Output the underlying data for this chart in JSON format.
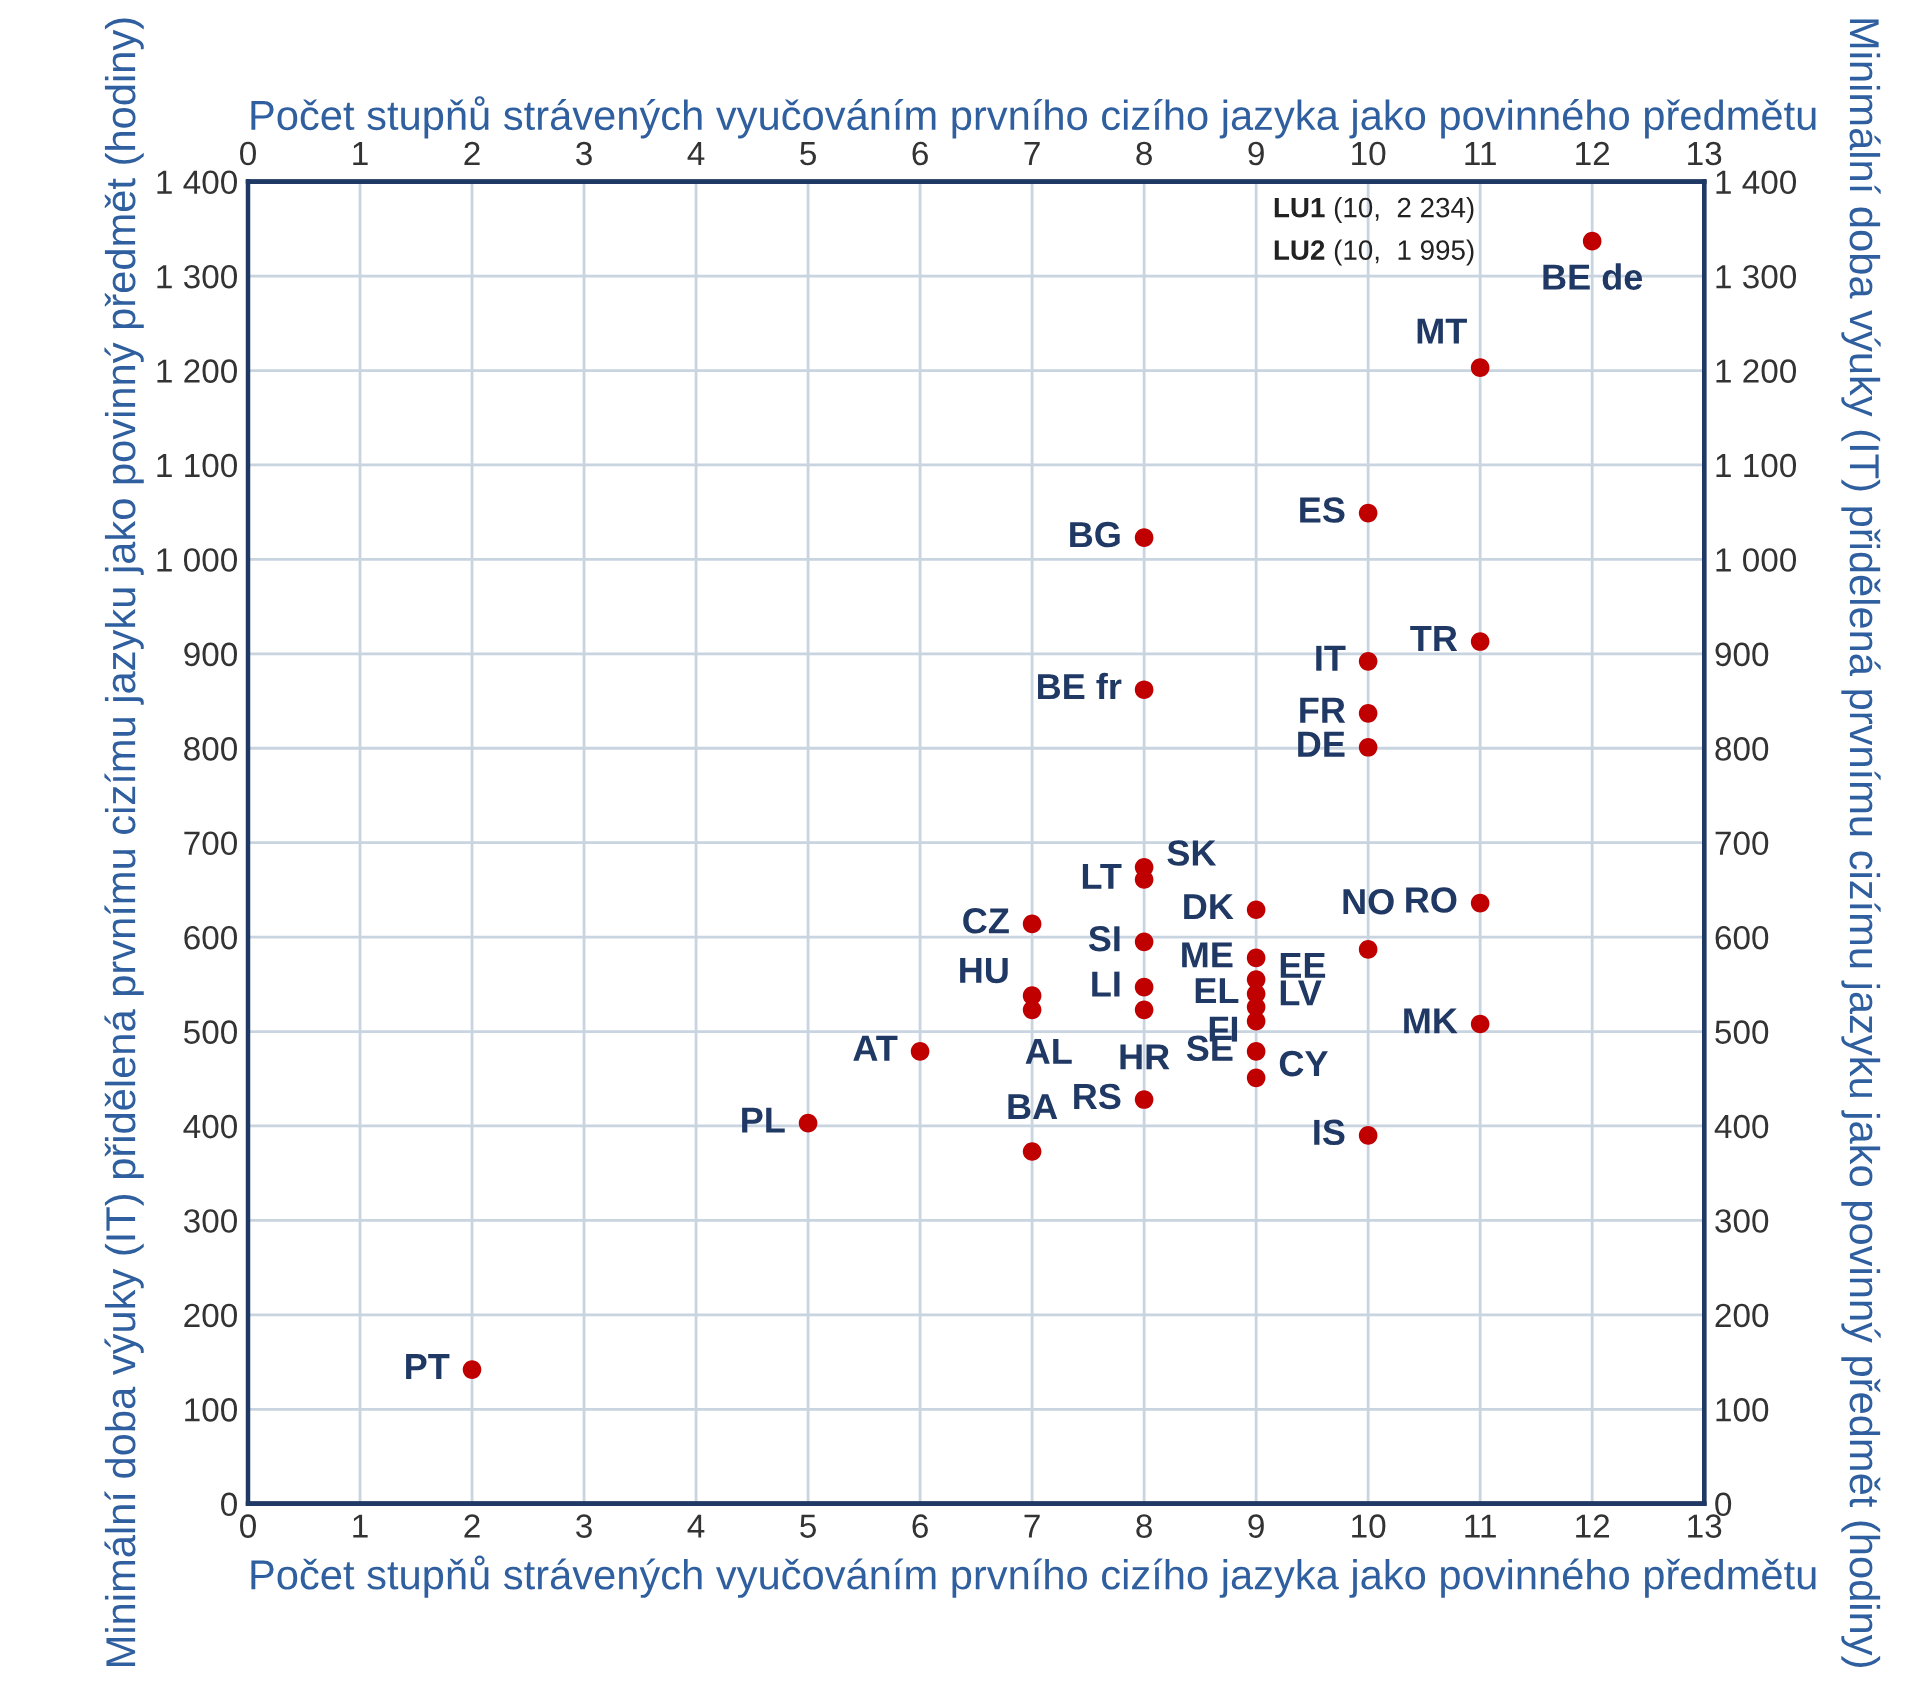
{
  "chart_data": {
    "type": "scatter",
    "xlabel": "Počet stupňů strávených vyučováním prvního cizího jazyka jako povinného předmětu",
    "x2label": "Počet stupňů strávených vyučováním prvního cizího jazyka jako povinného předmětu",
    "ylabel": "Minimální doba výuky (IT) přidělená prvnímu cizímu jazyku jako povinný předmět (hodiny)",
    "y2label": "Minimální doba výuky (IT) přidělená prvnímu cizímu jazyku jako povinný předmět (hodiny)",
    "xlim": [
      0,
      13
    ],
    "xticks": [
      0,
      1,
      2,
      3,
      4,
      5,
      6,
      7,
      8,
      9,
      10,
      11,
      12,
      13
    ],
    "x2lim": [
      0,
      13
    ],
    "x2ticks": [
      0,
      1,
      2,
      3,
      4,
      5,
      6,
      7,
      8,
      9,
      10,
      11,
      12,
      13
    ],
    "ylim": [
      0,
      1400
    ],
    "yticks": [
      0,
      100,
      200,
      300,
      400,
      500,
      600,
      700,
      800,
      900,
      {
        "value": 1000,
        "label": "1 000"
      },
      {
        "value": 1100,
        "label": "1 100"
      },
      {
        "value": 1200,
        "label": "1 200"
      },
      {
        "value": 1300,
        "label": "1 300"
      },
      {
        "value": 1400,
        "label": "1 400"
      }
    ],
    "y2lim": [
      0,
      1400
    ],
    "y2ticks": [
      0,
      100,
      200,
      300,
      400,
      500,
      600,
      700,
      800,
      900,
      {
        "value": 1000,
        "label": "1 000"
      },
      {
        "value": 1100,
        "label": "1 100"
      },
      {
        "value": 1200,
        "label": "1 200"
      },
      {
        "value": 1300,
        "label": "1 300"
      },
      {
        "value": 1400,
        "label": "1 400"
      }
    ],
    "grid": true,
    "marker": "circle",
    "series": [
      {
        "color": "#c00000",
        "x": [
          12,
          11,
          10,
          8,
          11,
          10,
          8,
          10,
          10,
          8,
          8,
          9,
          7,
          11,
          8,
          10,
          9,
          7,
          7,
          8,
          8,
          9,
          9,
          9,
          9,
          11,
          6,
          9,
          9,
          8,
          5,
          10,
          7,
          2
        ],
        "values": [
          1337,
          1203,
          1049,
          1023,
          913,
          892,
          862,
          837,
          801,
          674,
          661,
          629,
          614,
          636,
          595,
          587,
          578,
          538,
          523,
          547,
          523,
          555,
          540,
          526,
          511,
          508,
          479,
          479,
          451,
          428,
          403,
          390,
          373,
          142
        ]
      }
    ],
    "annotations": [
      {
        "text": "BE de",
        "x": 12,
        "y": 1337
      },
      {
        "text": "MT",
        "x": 11,
        "y": 1203
      },
      {
        "text": "ES",
        "x": 10,
        "y": 1049
      },
      {
        "text": "BG",
        "x": 8,
        "y": 1023
      },
      {
        "text": "TR",
        "x": 11,
        "y": 913
      },
      {
        "text": "IT",
        "x": 10,
        "y": 892
      },
      {
        "text": "BE fr",
        "x": 8,
        "y": 862
      },
      {
        "text": "FR",
        "x": 10,
        "y": 837
      },
      {
        "text": "DE",
        "x": 10,
        "y": 801
      },
      {
        "text": "SK",
        "x": 8,
        "y": 674
      },
      {
        "text": "LT",
        "x": 8,
        "y": 661
      },
      {
        "text": "DK",
        "x": 9,
        "y": 629
      },
      {
        "text": "CZ",
        "x": 7,
        "y": 614
      },
      {
        "text": "RO",
        "x": 11,
        "y": 636
      },
      {
        "text": "SI",
        "x": 8,
        "y": 595
      },
      {
        "text": "NO",
        "x": 10,
        "y": 587
      },
      {
        "text": "ME",
        "x": 9,
        "y": 578
      },
      {
        "text": "HU",
        "x": 7,
        "y": 538
      },
      {
        "text": "AL",
        "x": 7,
        "y": 523
      },
      {
        "text": "LI",
        "x": 8,
        "y": 547
      },
      {
        "text": "HR",
        "x": 8,
        "y": 523
      },
      {
        "text": "EE",
        "x": 9,
        "y": 555
      },
      {
        "text": "EL",
        "x": 9,
        "y": 540
      },
      {
        "text": "LV",
        "x": 9,
        "y": 526
      },
      {
        "text": "FI",
        "x": 9,
        "y": 511
      },
      {
        "text": "MK",
        "x": 11,
        "y": 508
      },
      {
        "text": "AT",
        "x": 6,
        "y": 479
      },
      {
        "text": "SE",
        "x": 9,
        "y": 479
      },
      {
        "text": "CY",
        "x": 9,
        "y": 451
      },
      {
        "text": "RS",
        "x": 8,
        "y": 428
      },
      {
        "text": "PL",
        "x": 5,
        "y": 403
      },
      {
        "text": "IS",
        "x": 10,
        "y": 390
      },
      {
        "text": "BA",
        "x": 7,
        "y": 373
      },
      {
        "text": "PT",
        "x": 2,
        "y": 142
      },
      "LU1 (10,  2 234)",
      "LU2 (10,  1 995)"
    ]
  }
}
